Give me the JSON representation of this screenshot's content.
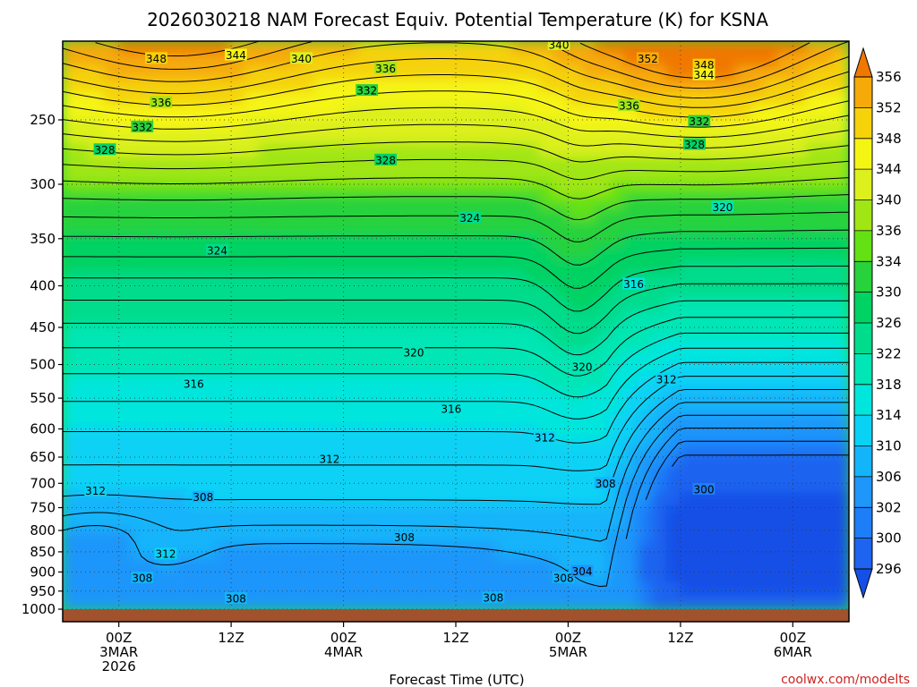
{
  "chart_data": {
    "type": "heatmap",
    "title": "2026030218 NAM Forecast Equiv. Potential Temperature (K) for KSNA",
    "xlabel": "Forecast Time (UTC)",
    "ylabel": "",
    "credit": "coolwx.com/modelts",
    "x_ticks": [
      {
        "t": 6,
        "l1": "00Z",
        "l2": "3MAR",
        "l3": "2026"
      },
      {
        "t": 18,
        "l1": "12Z",
        "l2": "",
        "l3": ""
      },
      {
        "t": 30,
        "l1": "00Z",
        "l2": "4MAR",
        "l3": ""
      },
      {
        "t": 42,
        "l1": "12Z",
        "l2": "",
        "l3": ""
      },
      {
        "t": 54,
        "l1": "00Z",
        "l2": "5MAR",
        "l3": ""
      },
      {
        "t": 66,
        "l1": "12Z",
        "l2": "",
        "l3": ""
      },
      {
        "t": 78,
        "l1": "00Z",
        "l2": "6MAR",
        "l3": ""
      }
    ],
    "x_range_hours": [
      0,
      84
    ],
    "y_ticks": [
      "250",
      "300",
      "350",
      "400",
      "450",
      "500",
      "550",
      "600",
      "650",
      "700",
      "750",
      "800",
      "850",
      "900",
      "950",
      "1000"
    ],
    "y_tick_values": [
      250,
      300,
      350,
      400,
      450,
      500,
      550,
      600,
      650,
      700,
      750,
      800,
      850,
      900,
      950,
      1000
    ],
    "y_range_hpa": [
      200,
      1000
    ],
    "y_scale": "log",
    "grid": true,
    "colorbar": {
      "levels": [
        "296",
        "300",
        "302",
        "306",
        "310",
        "314",
        "318",
        "322",
        "326",
        "330",
        "334",
        "336",
        "340",
        "344",
        "348",
        "352",
        "356"
      ],
      "colors": [
        "#1e64f0",
        "#1e7ef8",
        "#1e96fa",
        "#14b4fa",
        "#0ad2f5",
        "#00e6dc",
        "#00e6b4",
        "#00dc8c",
        "#00d264",
        "#28d23c",
        "#64e114",
        "#a0e614",
        "#dcf01e",
        "#f5f514",
        "#f5d20a",
        "#f5aa0a",
        "#f58c0a"
      ],
      "lower_color": "#1450e6",
      "upper_color": "#f07800"
    },
    "contour_labels": [
      {
        "t": 10,
        "p": 210,
        "v": "348"
      },
      {
        "t": 18.5,
        "p": 208,
        "v": "344"
      },
      {
        "t": 25.5,
        "p": 210,
        "v": "340"
      },
      {
        "t": 34.5,
        "p": 216,
        "v": "336"
      },
      {
        "t": 32.5,
        "p": 230,
        "v": "332"
      },
      {
        "t": 10.5,
        "p": 238,
        "v": "336"
      },
      {
        "t": 8.5,
        "p": 255,
        "v": "332"
      },
      {
        "t": 4.5,
        "p": 272,
        "v": "328"
      },
      {
        "t": 34.5,
        "p": 280,
        "v": "328"
      },
      {
        "t": 53,
        "p": 202,
        "v": "340"
      },
      {
        "t": 62.5,
        "p": 210,
        "v": "352"
      },
      {
        "t": 68.5,
        "p": 214,
        "v": "348"
      },
      {
        "t": 68.5,
        "p": 220,
        "v": "344"
      },
      {
        "t": 60.5,
        "p": 240,
        "v": "336"
      },
      {
        "t": 68,
        "p": 251,
        "v": "332"
      },
      {
        "t": 67.5,
        "p": 268,
        "v": "328"
      },
      {
        "t": 43.5,
        "p": 330,
        "v": "324"
      },
      {
        "t": 16.5,
        "p": 362,
        "v": "324"
      },
      {
        "t": 70.5,
        "p": 320,
        "v": "320"
      },
      {
        "t": 61,
        "p": 398,
        "v": "316"
      },
      {
        "t": 37.5,
        "p": 483,
        "v": "320"
      },
      {
        "t": 55.5,
        "p": 503,
        "v": "320"
      },
      {
        "t": 14,
        "p": 528,
        "v": "316"
      },
      {
        "t": 64.5,
        "p": 521,
        "v": "312"
      },
      {
        "t": 41.5,
        "p": 567,
        "v": "316"
      },
      {
        "t": 51.5,
        "p": 615,
        "v": "312"
      },
      {
        "t": 28.5,
        "p": 653,
        "v": "312"
      },
      {
        "t": 3.5,
        "p": 715,
        "v": "312"
      },
      {
        "t": 15,
        "p": 728,
        "v": "308"
      },
      {
        "t": 58,
        "p": 700,
        "v": "308"
      },
      {
        "t": 68.5,
        "p": 712,
        "v": "300"
      },
      {
        "t": 36.5,
        "p": 815,
        "v": "308"
      },
      {
        "t": 11,
        "p": 855,
        "v": "312"
      },
      {
        "t": 8.5,
        "p": 915,
        "v": "308"
      },
      {
        "t": 18.5,
        "p": 970,
        "v": "308"
      },
      {
        "t": 53.5,
        "p": 915,
        "v": "308"
      },
      {
        "t": 55.5,
        "p": 898,
        "v": "304"
      },
      {
        "t": 46,
        "p": 968,
        "v": "308"
      }
    ]
  }
}
